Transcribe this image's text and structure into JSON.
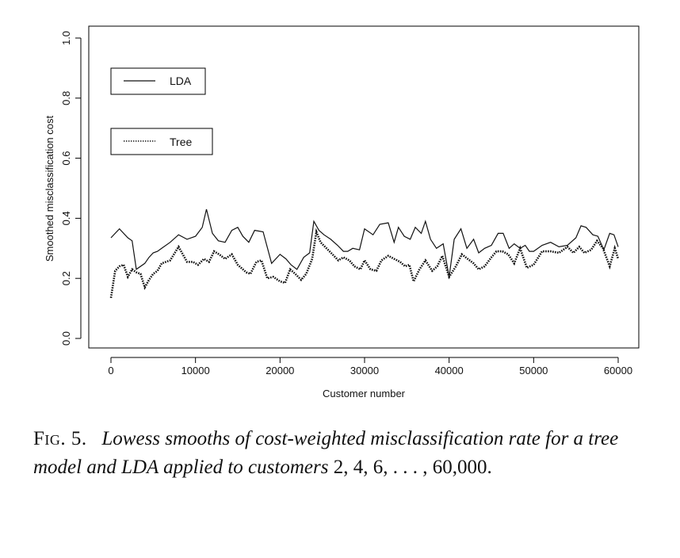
{
  "chart_data": {
    "type": "line",
    "xlabel": "Customer number",
    "ylabel": "Smoothed misclassification cost",
    "xlim": [
      -1500,
      62000
    ],
    "ylim": [
      -0.03,
      1.03
    ],
    "xticks": [
      0,
      10000,
      20000,
      30000,
      40000,
      50000,
      60000
    ],
    "xtick_labels": [
      "0",
      "10000",
      "20000",
      "30000",
      "40000",
      "50000",
      "60000"
    ],
    "yticks": [
      0.0,
      0.2,
      0.4,
      0.6,
      0.8,
      1.0
    ],
    "ytick_labels": [
      "0.0",
      "0.2",
      "0.4",
      "0.6",
      "0.8",
      "1.0"
    ],
    "grid": false,
    "legend": "separate boxes, top-left",
    "series": [
      {
        "name": "LDA",
        "style": "solid",
        "x": [
          0,
          1000,
          2000,
          2500,
          3000,
          4000,
          4500,
          5000,
          5500,
          6000,
          7000,
          8000,
          9000,
          10000,
          10800,
          11300,
          12000,
          12700,
          13500,
          14300,
          15000,
          15600,
          16300,
          17000,
          18000,
          19000,
          20000,
          20700,
          21300,
          22000,
          22800,
          23500,
          24000,
          24600,
          25200,
          26000,
          26800,
          27500,
          28000,
          28600,
          29400,
          30000,
          31000,
          31800,
          32800,
          33500,
          34000,
          34700,
          35400,
          36000,
          36700,
          37200,
          37800,
          38500,
          39300,
          40000,
          40600,
          41400,
          42100,
          42900,
          43500,
          44200,
          45000,
          45800,
          46400,
          47100,
          47700,
          48400,
          49000,
          49500,
          50000,
          51000,
          52000,
          53000,
          54000,
          55000,
          55600,
          56200,
          57000,
          57600,
          58300,
          59000,
          59500,
          60000
        ],
        "y": [
          0.335,
          0.365,
          0.335,
          0.325,
          0.23,
          0.25,
          0.27,
          0.285,
          0.29,
          0.3,
          0.32,
          0.345,
          0.33,
          0.34,
          0.37,
          0.43,
          0.35,
          0.325,
          0.32,
          0.36,
          0.37,
          0.34,
          0.32,
          0.36,
          0.355,
          0.25,
          0.28,
          0.265,
          0.245,
          0.23,
          0.27,
          0.285,
          0.39,
          0.36,
          0.345,
          0.33,
          0.31,
          0.29,
          0.29,
          0.3,
          0.295,
          0.365,
          0.345,
          0.38,
          0.385,
          0.32,
          0.37,
          0.34,
          0.33,
          0.37,
          0.35,
          0.39,
          0.33,
          0.3,
          0.315,
          0.205,
          0.33,
          0.365,
          0.3,
          0.33,
          0.285,
          0.3,
          0.31,
          0.35,
          0.35,
          0.3,
          0.315,
          0.3,
          0.31,
          0.29,
          0.29,
          0.31,
          0.32,
          0.305,
          0.31,
          0.335,
          0.375,
          0.37,
          0.345,
          0.34,
          0.295,
          0.35,
          0.345,
          0.305
        ]
      },
      {
        "name": "Tree",
        "style": "dotted",
        "x": [
          0,
          500,
          1000,
          1500,
          2000,
          2500,
          3000,
          3500,
          4000,
          4500,
          5000,
          5500,
          6000,
          7000,
          8000,
          9000,
          9700,
          10300,
          11000,
          11600,
          12200,
          12800,
          13500,
          14300,
          15000,
          16000,
          16500,
          17200,
          17800,
          18500,
          19200,
          20000,
          20600,
          21200,
          21800,
          22500,
          23100,
          23800,
          24300,
          24800,
          25500,
          26200,
          26900,
          27500,
          28200,
          28800,
          29500,
          30000,
          30700,
          31400,
          32000,
          32800,
          33500,
          34200,
          34800,
          35300,
          35800,
          36500,
          37200,
          38000,
          38600,
          39200,
          40000,
          40800,
          41500,
          42200,
          42900,
          43500,
          44200,
          45000,
          45600,
          46300,
          47000,
          47700,
          48400,
          49200,
          50000,
          51000,
          52000,
          53000,
          54000,
          54700,
          55400,
          56000,
          56800,
          57500,
          58200,
          59000,
          59600,
          60000
        ],
        "y": [
          0.135,
          0.225,
          0.24,
          0.245,
          0.205,
          0.23,
          0.22,
          0.215,
          0.17,
          0.195,
          0.215,
          0.225,
          0.25,
          0.26,
          0.305,
          0.255,
          0.255,
          0.245,
          0.265,
          0.255,
          0.29,
          0.28,
          0.265,
          0.28,
          0.245,
          0.22,
          0.215,
          0.255,
          0.26,
          0.2,
          0.205,
          0.19,
          0.185,
          0.23,
          0.215,
          0.195,
          0.215,
          0.265,
          0.355,
          0.32,
          0.3,
          0.28,
          0.26,
          0.27,
          0.26,
          0.24,
          0.23,
          0.26,
          0.23,
          0.225,
          0.26,
          0.275,
          0.265,
          0.255,
          0.24,
          0.245,
          0.19,
          0.23,
          0.26,
          0.225,
          0.24,
          0.275,
          0.205,
          0.24,
          0.28,
          0.265,
          0.25,
          0.23,
          0.24,
          0.27,
          0.29,
          0.29,
          0.28,
          0.25,
          0.3,
          0.235,
          0.245,
          0.29,
          0.29,
          0.285,
          0.305,
          0.285,
          0.305,
          0.285,
          0.295,
          0.325,
          0.3,
          0.24,
          0.3,
          0.265
        ]
      }
    ]
  },
  "legend": {
    "lda_label": "LDA",
    "tree_label": "Tree"
  },
  "caption": {
    "fig_label": "Fig. 5.",
    "text": "Lowess smooths of cost-weighted misclassification rate for a tree model and LDA applied to customers",
    "tail": " 2, 4, 6, . . . , 60,000."
  }
}
